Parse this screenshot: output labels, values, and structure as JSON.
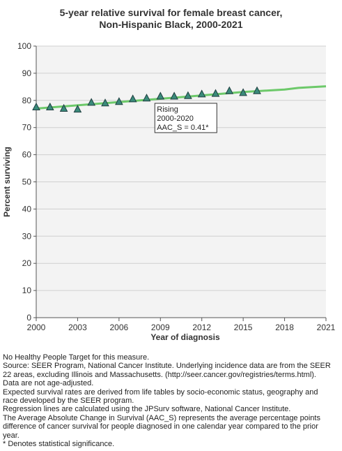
{
  "chart_data": {
    "type": "scatter",
    "title": "5-year relative survival for female breast cancer,",
    "subtitle": "Non-Hispanic Black,  2000-2021",
    "xlabel": "Year of diagnosis",
    "ylabel": "Percent surviving",
    "xlim": [
      2000,
      2021
    ],
    "ylim": [
      0,
      100
    ],
    "x_ticks": [
      2000,
      2003,
      2006,
      2009,
      2012,
      2015,
      2018,
      2021
    ],
    "y_ticks": [
      0,
      10,
      20,
      30,
      40,
      50,
      60,
      70,
      80,
      90,
      100
    ],
    "grid": true,
    "series": [
      {
        "type": "scatter",
        "marker": "triangle",
        "color": "#3a8a7a",
        "x": [
          2000,
          2001,
          2002,
          2003,
          2004,
          2005,
          2006,
          2007,
          2008,
          2009,
          2010,
          2011,
          2012,
          2013,
          2014,
          2015,
          2016
        ],
        "y": [
          77.5,
          77.5,
          77.0,
          76.7,
          79.2,
          79.0,
          79.5,
          80.5,
          80.8,
          81.5,
          81.5,
          81.7,
          82.3,
          82.5,
          83.5,
          82.8,
          83.5
        ]
      },
      {
        "type": "line",
        "color": "#6dc96a",
        "x": [
          2000,
          2005,
          2010,
          2015,
          2018,
          2019,
          2021
        ],
        "y": [
          77.0,
          79.0,
          81.0,
          83.1,
          84.0,
          84.6,
          85.2
        ]
      }
    ],
    "annotation": {
      "lines": [
        "Rising",
        "2000-2020",
        "AAC_S =  0.41*"
      ],
      "anchor_x": 2009,
      "anchor_y": 81.5
    }
  },
  "footnotes": [
    "No Healthy People Target for this measure.",
    "Source: SEER Program, National Cancer Institute. Underlying incidence data are from the SEER",
    "22 areas, excluding Illinois and Massachusetts. (http://seer.cancer.gov/registries/terms.html).",
    "Data are not age-adjusted.",
    "Expected survival rates are derived from life tables by socio-economic status, geography and",
    "race developed by the SEER program.",
    "Regression lines are calculated using the JPSurv software, National Cancer Institute.",
    "The Average Absolute Change in Survival (AAC_S) represents the average percentage points",
    "difference of cancer survival for people diagnosed in one calendar year compared to the prior",
    "year.",
    "* Denotes statistical significance."
  ]
}
